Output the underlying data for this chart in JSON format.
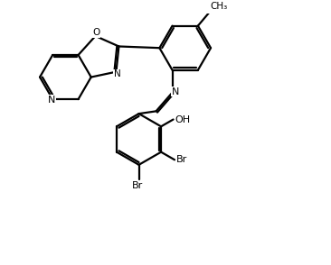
{
  "bg_color": "#ffffff",
  "line_color": "#000000",
  "lw": 1.6,
  "figsize": [
    3.66,
    2.94
  ],
  "dpi": 100,
  "xlim": [
    0,
    10
  ],
  "ylim": [
    0,
    8
  ]
}
